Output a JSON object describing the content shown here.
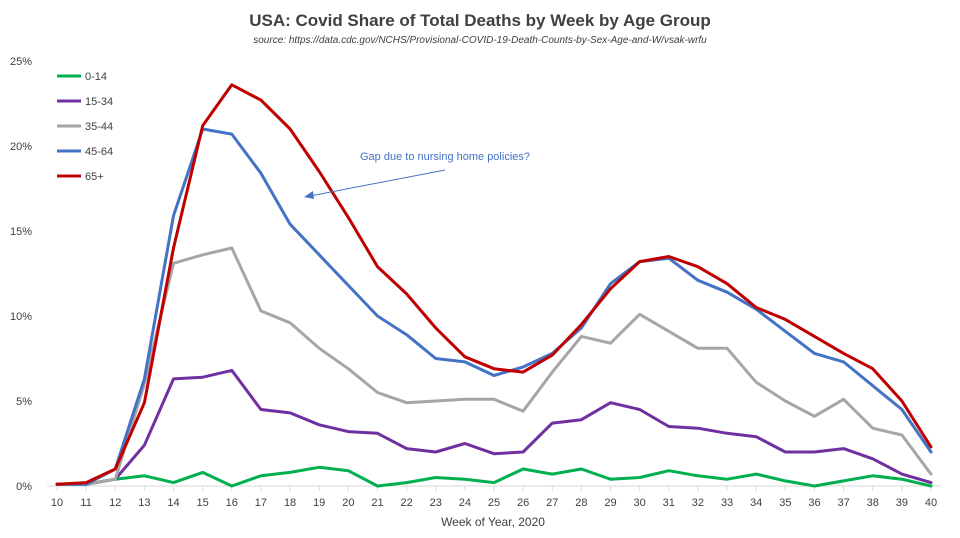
{
  "chart_data": {
    "type": "line",
    "title": "USA: Covid Share of Total Deaths by Week by Age Group",
    "subtitle": "source: https://data.cdc.gov/NCHS/Provisional-COVID-19-Death-Counts-by-Sex-Age-and-W/vsak-wrfu",
    "xlabel": "Week of Year, 2020",
    "ylabel": "",
    "x": [
      10,
      11,
      12,
      13,
      14,
      15,
      16,
      17,
      18,
      19,
      20,
      21,
      22,
      23,
      24,
      25,
      26,
      27,
      28,
      29,
      30,
      31,
      32,
      33,
      34,
      35,
      36,
      37,
      38,
      39,
      40
    ],
    "ylim": [
      0,
      25
    ],
    "y_ticks": [
      "0%",
      "5%",
      "10%",
      "15%",
      "20%",
      "25%"
    ],
    "grid": "off",
    "legend_position": "top-left",
    "annotation": "Gap due to nursing home policies?",
    "series": [
      {
        "name": "0-14",
        "color": "#00B050",
        "values": [
          0.1,
          0.1,
          0.4,
          0.6,
          0.2,
          0.8,
          0.0,
          0.6,
          0.8,
          1.1,
          0.9,
          0.0,
          0.2,
          0.5,
          0.4,
          0.2,
          1.0,
          0.7,
          1.0,
          0.4,
          0.5,
          0.9,
          0.6,
          0.4,
          0.7,
          0.3,
          0.0,
          0.3,
          0.6,
          0.4,
          0.0
        ]
      },
      {
        "name": "15-34",
        "color": "#7030A0",
        "values": [
          0.1,
          0.1,
          0.4,
          2.4,
          6.3,
          6.4,
          6.8,
          4.5,
          4.3,
          3.6,
          3.2,
          3.1,
          2.2,
          2.0,
          2.5,
          1.9,
          2.0,
          3.7,
          3.9,
          4.9,
          4.5,
          3.5,
          3.4,
          3.1,
          2.9,
          2.0,
          2.0,
          2.2,
          1.6,
          0.7,
          0.2
        ]
      },
      {
        "name": "35-44",
        "color": "#A6A6A6",
        "values": [
          0.1,
          0.1,
          0.4,
          6.0,
          13.1,
          13.6,
          14.0,
          10.3,
          9.6,
          8.1,
          6.9,
          5.5,
          4.9,
          5.0,
          5.1,
          5.1,
          4.4,
          6.7,
          8.8,
          8.4,
          10.1,
          9.1,
          8.1,
          8.1,
          6.1,
          5.0,
          4.1,
          5.1,
          3.4,
          3.0,
          0.7
        ]
      },
      {
        "name": "45-64",
        "color": "#4472C4",
        "values": [
          0.1,
          0.1,
          1.0,
          6.3,
          15.9,
          21.0,
          20.7,
          18.4,
          15.4,
          13.6,
          11.8,
          10.0,
          8.9,
          7.5,
          7.3,
          6.5,
          7.0,
          7.8,
          9.3,
          11.9,
          13.2,
          13.4,
          12.1,
          11.4,
          10.4,
          9.1,
          7.8,
          7.3,
          5.9,
          4.5,
          2.0
        ]
      },
      {
        "name": "65+",
        "color": "#C00000",
        "values": [
          0.1,
          0.2,
          1.0,
          4.9,
          14.0,
          21.2,
          23.6,
          22.7,
          21.0,
          18.5,
          15.8,
          12.9,
          11.3,
          9.3,
          7.6,
          6.9,
          6.7,
          7.7,
          9.5,
          11.6,
          13.2,
          13.5,
          12.9,
          11.9,
          10.5,
          9.8,
          8.8,
          7.8,
          6.9,
          5.0,
          2.3
        ]
      }
    ]
  }
}
